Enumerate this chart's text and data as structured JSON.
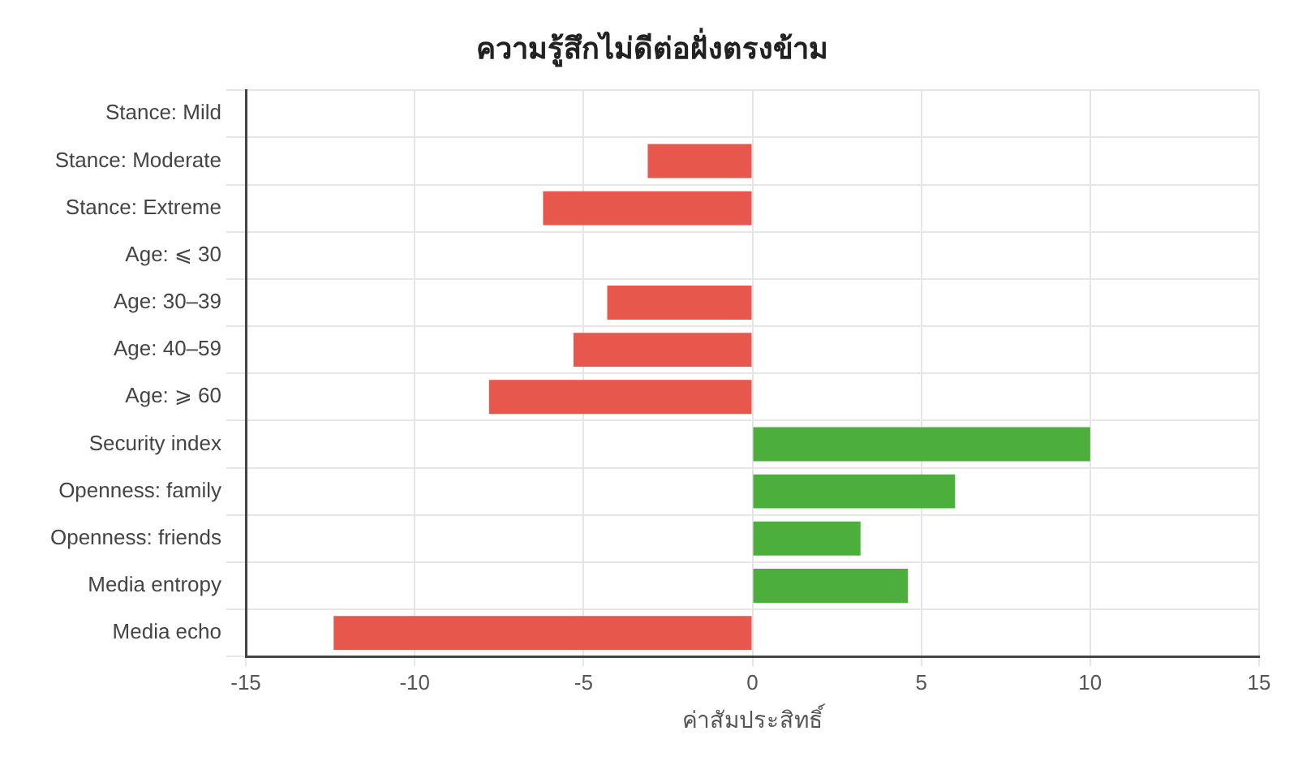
{
  "chart_data": {
    "type": "bar",
    "orientation": "horizontal",
    "title": "ความรู้สึกไม่ดีต่อฝั่งตรงข้าม",
    "xlabel": "ค่าสัมประสิทธิ์",
    "categories": [
      "Stance: Mild",
      "Stance: Moderate",
      "Stance: Extreme",
      "Age: ⩽ 30",
      "Age: 30–39",
      "Age: 40–59",
      "Age: ⩾ 60",
      "Security index",
      "Openness: family",
      "Openness: friends",
      "Media entropy",
      "Media echo"
    ],
    "values": [
      0,
      -3.1,
      -6.2,
      0,
      -4.3,
      -5.3,
      -7.8,
      10.0,
      6.0,
      3.2,
      4.6,
      -12.4
    ],
    "colors": [
      "#e8574b",
      "#e8574b",
      "#e8574b",
      "#e8574b",
      "#e8574b",
      "#e8574b",
      "#e8574b",
      "#4caf3c",
      "#4caf3c",
      "#4caf3c",
      "#4caf3c",
      "#e8574b"
    ],
    "xlim": [
      -15,
      15
    ],
    "xticks": [
      -15,
      -10,
      -5,
      0,
      5,
      10,
      15
    ],
    "grid": true,
    "legend": false
  }
}
